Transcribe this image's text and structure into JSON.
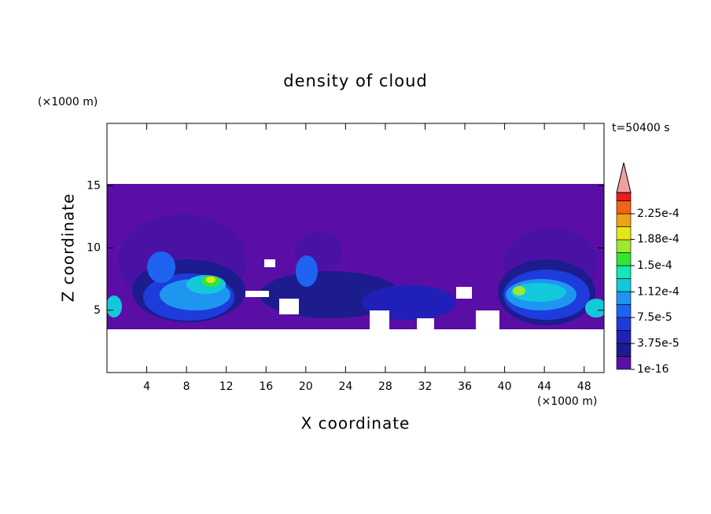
{
  "chart_data": {
    "type": "contour",
    "title": "density of cloud",
    "xlabel": "X coordinate",
    "ylabel": "Z coordinate",
    "x_unit": "(×1000 m)",
    "y_unit": "(×1000 m)",
    "annotation": "t=50400 s",
    "xlim": [
      0,
      50
    ],
    "xticks": [
      4,
      8,
      12,
      16,
      20,
      24,
      28,
      32,
      36,
      40,
      44,
      48
    ],
    "ylim": [
      0,
      20
    ],
    "yticks": [
      5,
      10,
      15
    ],
    "colorbar": {
      "ticks": [
        1e-16,
        {
          "value": 3.75e-05,
          "label": "3.75e-5"
        },
        {
          "value": 7.5e-05,
          "label": "7.5e-5"
        },
        {
          "value": 0.000112,
          "label": "1.12e-4"
        },
        {
          "value": 0.00015,
          "label": "1.5e-4"
        },
        {
          "value": 0.000188,
          "label": "1.88e-4"
        },
        {
          "value": 0.000225,
          "label": "2.25e-4"
        }
      ],
      "colors": [
        "#5b0ea6",
        "#1c1c8e",
        "#2020b8",
        "#1e3cdc",
        "#1e64f0",
        "#1e96f0",
        "#14c8dc",
        "#14e6b4",
        "#32e632",
        "#a0e632",
        "#e6e614",
        "#f0a014",
        "#f06414",
        "#e61e1e"
      ],
      "extend_color": "#f0a0a0"
    }
  }
}
